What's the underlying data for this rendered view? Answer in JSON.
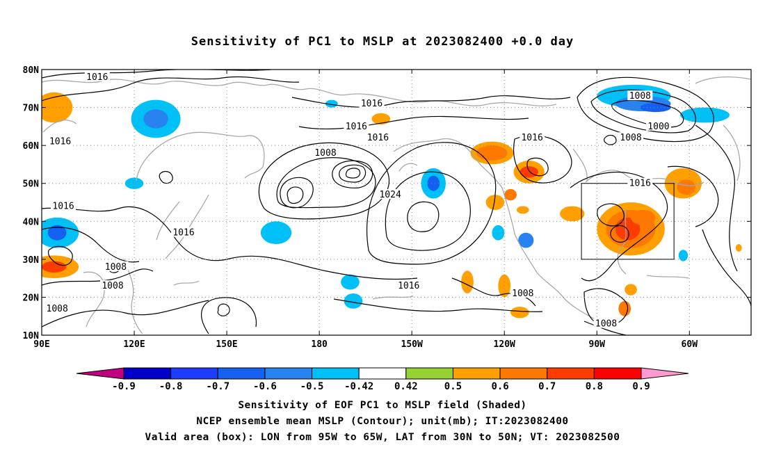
{
  "title": "Sensitivity of PC1 to MSLP at 2023082400 +0.0 day",
  "captions": {
    "line1": "Sensitivity of EOF PC1 to MSLP field (Shaded)",
    "line2": "NCEP ensemble mean MSLP (Contour); unit(mb); IT:2023082400",
    "line3": "Valid area (box): LON from 95W to 65W, LAT from 30N to 50N; VT: 2023082500"
  },
  "axes": {
    "lat_ticks": [
      {
        "value": 80,
        "label": "80N"
      },
      {
        "value": 70,
        "label": "70N"
      },
      {
        "value": 60,
        "label": "60N"
      },
      {
        "value": 50,
        "label": "50N"
      },
      {
        "value": 40,
        "label": "40N"
      },
      {
        "value": 30,
        "label": "30N"
      },
      {
        "value": 20,
        "label": "20N"
      },
      {
        "value": 10,
        "label": "10N"
      }
    ],
    "lon_ticks": [
      {
        "value": 90,
        "label": "90E"
      },
      {
        "value": 120,
        "label": "120E"
      },
      {
        "value": 150,
        "label": "150E"
      },
      {
        "value": 180,
        "label": "180"
      },
      {
        "value": 210,
        "label": "150W"
      },
      {
        "value": 240,
        "label": "120W"
      },
      {
        "value": 270,
        "label": "90W"
      },
      {
        "value": 300,
        "label": "60W"
      }
    ],
    "lon_range": [
      90,
      320
    ],
    "lat_range": [
      10,
      80
    ],
    "grid": true
  },
  "colorbar": {
    "labels": [
      "-0.9",
      "-0.8",
      "-0.7",
      "-0.6",
      "-0.5",
      "-0.42",
      "0.42",
      "0.5",
      "0.6",
      "0.7",
      "0.8",
      "0.9"
    ],
    "colors": [
      "#c0007f",
      "#0000c8",
      "#1e3cff",
      "#1460f0",
      "#2882f0",
      "#00c0f8",
      "#ffffff",
      "#96d232",
      "#ffa000",
      "#ff7800",
      "#ff3c00",
      "#ff0000",
      "#ff9ad0"
    ]
  },
  "valid_box": {
    "lon_min": 265,
    "lon_max": 295,
    "lat_min": 30,
    "lat_max": 50
  },
  "contour_labels": [
    {
      "text": "1016",
      "lon": 108,
      "lat": 78
    },
    {
      "text": "1016",
      "lon": 197,
      "lat": 71
    },
    {
      "text": "1016",
      "lon": 192,
      "lat": 65
    },
    {
      "text": "1008",
      "lon": 284,
      "lat": 73
    },
    {
      "text": "1000",
      "lon": 290,
      "lat": 65
    },
    {
      "text": "1008",
      "lon": 281,
      "lat": 62
    },
    {
      "text": "1016",
      "lon": 96,
      "lat": 61
    },
    {
      "text": "1016",
      "lon": 199,
      "lat": 62
    },
    {
      "text": "1016",
      "lon": 249,
      "lat": 62
    },
    {
      "text": "1008",
      "lon": 182,
      "lat": 58
    },
    {
      "text": "1024",
      "lon": 203,
      "lat": 47
    },
    {
      "text": "1016",
      "lon": 284,
      "lat": 50
    },
    {
      "text": "1016",
      "lon": 97,
      "lat": 44
    },
    {
      "text": "1016",
      "lon": 136,
      "lat": 37
    },
    {
      "text": "1008",
      "lon": 114,
      "lat": 28
    },
    {
      "text": "1008",
      "lon": 113,
      "lat": 23
    },
    {
      "text": "1016",
      "lon": 209,
      "lat": 23
    },
    {
      "text": "1008",
      "lon": 95,
      "lat": 17
    },
    {
      "text": "1008",
      "lon": 246,
      "lat": 21
    },
    {
      "text": "1008",
      "lon": 273,
      "lat": 13
    }
  ],
  "shading_patches": [
    {
      "lon": 94,
      "lat": 70,
      "rx": 6,
      "ry": 4,
      "level": 0.5
    },
    {
      "lon": 127,
      "lat": 67,
      "rx": 8,
      "ry": 5,
      "level": -0.5
    },
    {
      "lon": 127,
      "lat": 67,
      "rx": 4,
      "ry": 2.5,
      "level": -0.6
    },
    {
      "lon": 120,
      "lat": 50,
      "rx": 3,
      "ry": 1.5,
      "level": -0.5
    },
    {
      "lon": 95,
      "lat": 37,
      "rx": 7,
      "ry": 4,
      "level": -0.5
    },
    {
      "lon": 95,
      "lat": 37,
      "rx": 3,
      "ry": 2,
      "level": -0.7
    },
    {
      "lon": 94,
      "lat": 28,
      "rx": 8,
      "ry": 3,
      "level": 0.5
    },
    {
      "lon": 94,
      "lat": 28,
      "rx": 4,
      "ry": 1.5,
      "level": 0.7
    },
    {
      "lon": 166,
      "lat": 37,
      "rx": 5,
      "ry": 3,
      "level": -0.5
    },
    {
      "lon": 184,
      "lat": 71,
      "rx": 2,
      "ry": 1,
      "level": -0.5
    },
    {
      "lon": 200,
      "lat": 67,
      "rx": 3,
      "ry": 1.5,
      "level": 0.5
    },
    {
      "lon": 217,
      "lat": 50,
      "rx": 4,
      "ry": 4,
      "level": -0.5
    },
    {
      "lon": 217,
      "lat": 50,
      "rx": 2,
      "ry": 2,
      "level": -0.7
    },
    {
      "lon": 190,
      "lat": 24,
      "rx": 3,
      "ry": 2,
      "level": -0.5
    },
    {
      "lon": 191,
      "lat": 19,
      "rx": 3,
      "ry": 2,
      "level": -0.5
    },
    {
      "lon": 236,
      "lat": 58,
      "rx": 7,
      "ry": 3,
      "level": 0.5
    },
    {
      "lon": 236,
      "lat": 58,
      "rx": 5,
      "ry": 2,
      "level": 0.6
    },
    {
      "lon": 248,
      "lat": 53,
      "rx": 5,
      "ry": 3,
      "level": 0.5
    },
    {
      "lon": 248,
      "lat": 53,
      "rx": 3,
      "ry": 1.5,
      "level": 0.7
    },
    {
      "lon": 237,
      "lat": 45,
      "rx": 3,
      "ry": 2,
      "level": 0.5
    },
    {
      "lon": 242,
      "lat": 47,
      "rx": 2,
      "ry": 1.5,
      "level": 0.6
    },
    {
      "lon": 246,
      "lat": 43,
      "rx": 2,
      "ry": 1,
      "level": 0.5
    },
    {
      "lon": 238,
      "lat": 37,
      "rx": 2,
      "ry": 2,
      "level": -0.5
    },
    {
      "lon": 247,
      "lat": 35,
      "rx": 2.5,
      "ry": 2,
      "level": -0.6
    },
    {
      "lon": 228,
      "lat": 24,
      "rx": 2,
      "ry": 3,
      "level": 0.5
    },
    {
      "lon": 240,
      "lat": 23,
      "rx": 2,
      "ry": 3,
      "level": 0.5
    },
    {
      "lon": 245,
      "lat": 16,
      "rx": 3,
      "ry": 1.5,
      "level": 0.5
    },
    {
      "lon": 262,
      "lat": 42,
      "rx": 4,
      "ry": 2,
      "level": 0.5
    },
    {
      "lon": 281,
      "lat": 38,
      "rx": 11,
      "ry": 7,
      "level": 0.5
    },
    {
      "lon": 281,
      "lat": 38,
      "rx": 8,
      "ry": 5,
      "level": 0.6
    },
    {
      "lon": 280,
      "lat": 38,
      "rx": 4,
      "ry": 3,
      "level": 0.7
    },
    {
      "lon": 285,
      "lat": 41,
      "rx": 4,
      "ry": 2,
      "level": 0.6
    },
    {
      "lon": 298,
      "lat": 50,
      "rx": 6,
      "ry": 4,
      "level": 0.5
    },
    {
      "lon": 299,
      "lat": 49,
      "rx": 3,
      "ry": 2,
      "level": 0.6
    },
    {
      "lon": 282,
      "lat": 73,
      "rx": 12,
      "ry": 3,
      "level": -0.5
    },
    {
      "lon": 285,
      "lat": 71,
      "rx": 9,
      "ry": 2,
      "level": -0.6
    },
    {
      "lon": 289,
      "lat": 70,
      "rx": 5,
      "ry": 1.2,
      "level": -0.7
    },
    {
      "lon": 305,
      "lat": 68,
      "rx": 8,
      "ry": 2,
      "level": -0.5
    },
    {
      "lon": 279,
      "lat": 17,
      "rx": 2,
      "ry": 2,
      "level": 0.6
    },
    {
      "lon": 281,
      "lat": 22,
      "rx": 2,
      "ry": 1.5,
      "level": 0.5
    },
    {
      "lon": 298,
      "lat": 31,
      "rx": 1.5,
      "ry": 1.5,
      "level": -0.5
    },
    {
      "lon": 316,
      "lat": 33,
      "rx": 1,
      "ry": 1,
      "level": 0.5
    }
  ]
}
